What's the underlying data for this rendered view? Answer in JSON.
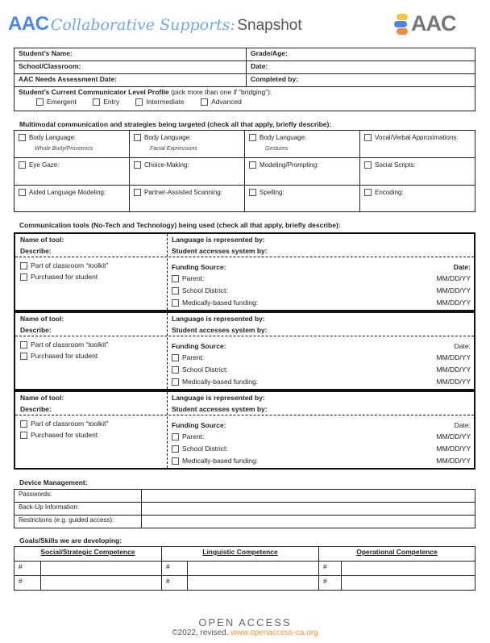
{
  "header": {
    "aac": "AAC",
    "script": "Collaborative Supports:",
    "snapshot": "Snapshot",
    "logo": "AAC"
  },
  "student": {
    "name": "Student’s Name:",
    "grade": "Grade/Age:",
    "school": "School/Classroom:",
    "date": "Date:",
    "assess": "AAC Needs Assessment Date:",
    "completed": "Completed by:",
    "profile_bold": "Student’s Current Communicator Level Profile",
    "profile_note": " (pick more than one if “bridging”):",
    "levels": [
      "Emergent",
      "Entry",
      "Intermediate",
      "Advanced"
    ]
  },
  "multimodal": {
    "heading": "Multimodal communication and strategies being targeted (check all that apply, briefly describe):",
    "cells": [
      {
        "label": "Body Language:",
        "sub": "Whole Body/Proxemics"
      },
      {
        "label": "Body Language:",
        "sub": "Facial Expressions"
      },
      {
        "label": "Body Language:",
        "sub": "Gestures"
      },
      {
        "label": "Vocal/Verbal Approximations:"
      },
      {
        "label": "Eye Gaze:"
      },
      {
        "label": "Choice-Making:"
      },
      {
        "label": "Modeling/Prompting:"
      },
      {
        "label": "Social Scripts:"
      },
      {
        "label": "Aided Language Modeling:"
      },
      {
        "label": "Partner-Assisted Scanning:"
      },
      {
        "label": "Spelling:"
      },
      {
        "label": "Encoding:"
      }
    ]
  },
  "tools": {
    "heading": "Communication tools (No-Tech and Technology) being used (check all that apply, briefly describe):",
    "name": "Name of tool:",
    "describe": "Describe:",
    "language": "Language is represented by:",
    "access": "Student accesses system by:",
    "toolkit": "Part of classroom “toolkit”",
    "purchased": "Purchased for student",
    "funding": "Funding Source:",
    "date": "Date:",
    "sources": [
      "Parent:",
      "School District:",
      "Medically-based funding:"
    ],
    "date_format": "MM/DD/YY"
  },
  "device": {
    "heading": "Device Management:",
    "rows": [
      "Passwords:",
      "Back-Up Information:",
      "Restrictions (e.g. guided access):"
    ]
  },
  "goals": {
    "heading": "Goals/Skills we are developing:",
    "columns": [
      "Social/Strategic Competence",
      "Linguistic Competence",
      "Operational Competence"
    ],
    "marker": "#"
  },
  "footer": {
    "org": "OPEN ACCESS",
    "copyright": "©2022, revised.",
    "url": "www.openaccess-ca.org"
  },
  "colors": {
    "brand_blue": "#4a86e8",
    "accent_orange": "#f39237"
  }
}
